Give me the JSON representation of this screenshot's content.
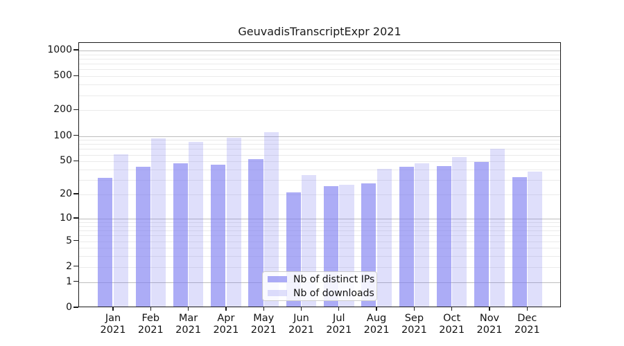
{
  "title": "GeuvadisTranscriptExpr 2021",
  "legend": {
    "items": [
      {
        "label": "Nb of distinct IPs",
        "color": "rgba(123,123,240,0.63)"
      },
      {
        "label": "Nb of downloads",
        "color": "rgba(123,123,240,0.24)"
      }
    ]
  },
  "chart_data": {
    "type": "bar",
    "title": "GeuvadisTranscriptExpr 2021",
    "categories": [
      {
        "month": "Jan",
        "year": "2021"
      },
      {
        "month": "Feb",
        "year": "2021"
      },
      {
        "month": "Mar",
        "year": "2021"
      },
      {
        "month": "Apr",
        "year": "2021"
      },
      {
        "month": "May",
        "year": "2021"
      },
      {
        "month": "Jun",
        "year": "2021"
      },
      {
        "month": "Jul",
        "year": "2021"
      },
      {
        "month": "Aug",
        "year": "2021"
      },
      {
        "month": "Sep",
        "year": "2021"
      },
      {
        "month": "Oct",
        "year": "2021"
      },
      {
        "month": "Nov",
        "year": "2021"
      },
      {
        "month": "Dec",
        "year": "2021"
      }
    ],
    "series": [
      {
        "name": "Nb of distinct IPs",
        "color": "rgba(123,123,240,0.63)",
        "values": [
          31,
          42,
          47,
          45,
          52,
          21,
          25,
          27,
          42,
          43,
          48,
          32
        ]
      },
      {
        "name": "Nb of downloads",
        "color": "rgba(123,123,240,0.24)",
        "values": [
          60,
          92,
          83,
          94,
          108,
          34,
          26,
          40,
          47,
          55,
          69,
          37
        ]
      }
    ],
    "xlabel": "",
    "ylabel": "",
    "yscale": "log1p",
    "yticks": [
      0,
      1,
      2,
      5,
      10,
      20,
      50,
      100,
      200,
      500,
      1000
    ],
    "ylim": [
      0,
      1230
    ],
    "grid": "major-and-minor",
    "legend_position": "bottom-center-inside"
  }
}
